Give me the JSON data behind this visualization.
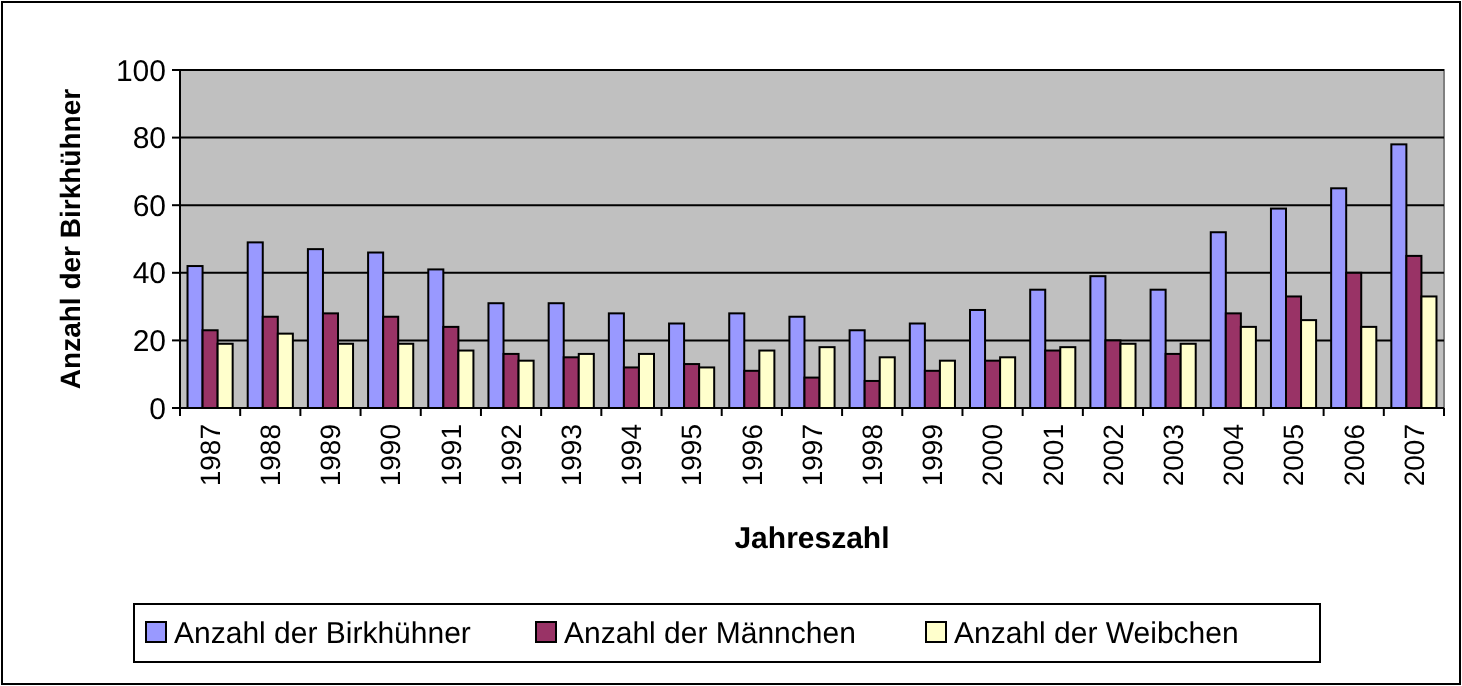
{
  "chart_data": {
    "type": "bar",
    "ylabel": "Anzahl der Birkhühner",
    "xlabel": "Jahreszahl",
    "categories": [
      "1987",
      "1988",
      "1989",
      "1990",
      "1991",
      "1992",
      "1993",
      "1994",
      "1995",
      "1996",
      "1997",
      "1998",
      "1999",
      "2000",
      "2001",
      "2002",
      "2003",
      "2004",
      "2005",
      "2006",
      "2007"
    ],
    "series": [
      {
        "name": "Anzahl der Birkhühner",
        "color": "#9999ff",
        "values": [
          42,
          49,
          47,
          46,
          41,
          31,
          31,
          28,
          25,
          28,
          27,
          23,
          25,
          29,
          35,
          39,
          35,
          52,
          59,
          65,
          78
        ]
      },
      {
        "name": "Anzahl der Männchen",
        "color": "#993366",
        "values": [
          23,
          27,
          28,
          27,
          24,
          16,
          15,
          12,
          13,
          11,
          9,
          8,
          11,
          14,
          17,
          20,
          16,
          28,
          33,
          40,
          45
        ]
      },
      {
        "name": "Anzahl der Weibchen",
        "color": "#ffffcc",
        "values": [
          19,
          22,
          19,
          19,
          17,
          14,
          16,
          16,
          12,
          17,
          18,
          15,
          14,
          15,
          18,
          19,
          19,
          24,
          26,
          24,
          33
        ]
      }
    ],
    "ylim": [
      0,
      100
    ],
    "yticks": [
      0,
      20,
      40,
      60,
      80,
      100
    ],
    "grid": "y",
    "legend": "bottom"
  }
}
